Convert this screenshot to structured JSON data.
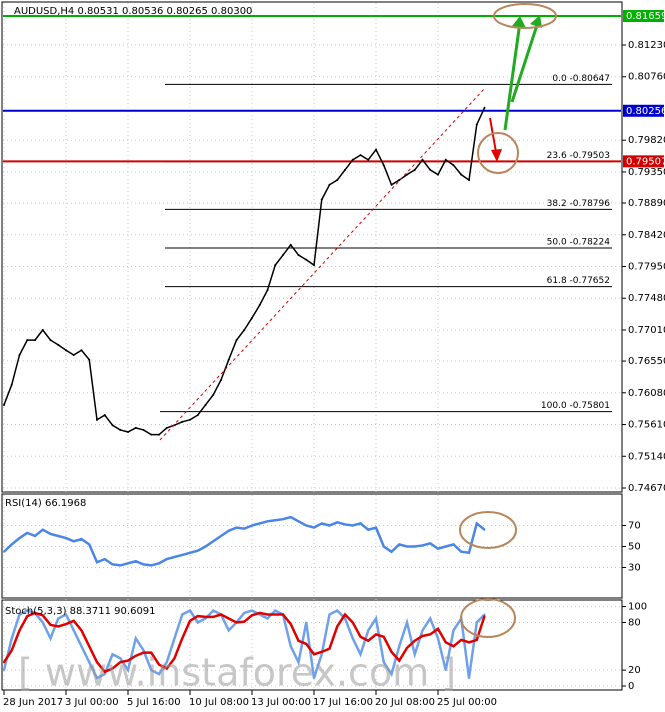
{
  "chart_data": [
    {
      "type": "line",
      "title": "AUDUSD,H4  0.80531 0.80536 0.80265 0.80300",
      "watermark": "[   www.instaforex.com   ]",
      "categories": [
        "28 Jun 2017",
        null,
        null,
        null,
        null,
        null,
        null,
        null,
        "3 Jul 00:00",
        null,
        null,
        null,
        null,
        null,
        null,
        null,
        "5 Jul 16:00",
        null,
        null,
        null,
        null,
        null,
        null,
        null,
        "10 Jul 08:00",
        null,
        null,
        null,
        null,
        null,
        null,
        null,
        "13 Jul 00:00",
        null,
        null,
        null,
        null,
        null,
        null,
        null,
        "17 Jul 16:00",
        null,
        null,
        null,
        null,
        null,
        null,
        null,
        "20 Jul 08:00",
        null,
        null,
        null,
        null,
        null,
        null,
        null,
        "25 Jul 00:00",
        null,
        null,
        null,
        null,
        null,
        null
      ],
      "series": [
        {
          "name": "AUDUSD",
          "color": "#000000",
          "values": [
            0.759,
            0.762,
            0.7664,
            0.7686,
            0.7686,
            0.7701,
            0.7686,
            0.7679,
            0.7671,
            0.7664,
            0.7671,
            0.7657,
            0.7568,
            0.7575,
            0.756,
            0.7553,
            0.755,
            0.7556,
            0.7553,
            0.7546,
            0.7546,
            0.7556,
            0.756,
            0.7565,
            0.7568,
            0.7575,
            0.759,
            0.7605,
            0.7627,
            0.7657,
            0.7686,
            0.7701,
            0.7719,
            0.7738,
            0.776,
            0.7797,
            0.7812,
            0.7827,
            0.7812,
            0.7805,
            0.7797,
            0.7894,
            0.7916,
            0.7923,
            0.7938,
            0.7953,
            0.796,
            0.7953,
            0.7968,
            0.7945,
            0.7916,
            0.7923,
            0.7931,
            0.7938,
            0.7953,
            0.7938,
            0.7931,
            0.7953,
            0.7945,
            0.7931,
            0.7923,
            0.8005,
            0.803
          ]
        }
      ],
      "ylim": [
        0.74611,
        0.81837
      ],
      "yticks": [
        {
          "value": 0.8123,
          "label": "0.81230"
        },
        {
          "value": 0.8076,
          "label": "0.80760"
        },
        {
          "value": 0.7982,
          "label": "0.79820"
        },
        {
          "value": 0.7935,
          "label": "0.79350"
        },
        {
          "value": 0.7889,
          "label": "0.78890"
        },
        {
          "value": 0.7842,
          "label": "0.78420"
        },
        {
          "value": 0.7795,
          "label": "0.77950"
        },
        {
          "value": 0.7748,
          "label": "0.77480"
        },
        {
          "value": 0.7701,
          "label": "0.77010"
        },
        {
          "value": 0.7655,
          "label": "0.76550"
        },
        {
          "value": 0.7608,
          "label": "0.76080"
        },
        {
          "value": 0.7561,
          "label": "0.75610"
        },
        {
          "value": 0.7514,
          "label": "0.75140"
        },
        {
          "value": 0.7467,
          "label": "0.74670"
        }
      ],
      "levels": [
        {
          "value": 0.81659,
          "color": "#00b000"
        },
        {
          "value": 0.80256,
          "color": "#0000cc"
        },
        {
          "value": 0.79507,
          "color": "#d00000"
        }
      ],
      "fibonacci": [
        {
          "value": 0.80647,
          "label": "0.0 -0.80647"
        },
        {
          "value": 0.79503,
          "label": "23.6 -0.79503"
        },
        {
          "value": 0.78796,
          "label": "38.2 -0.78796"
        },
        {
          "value": 0.78224,
          "label": "50.0 -0.78224"
        },
        {
          "value": 0.77652,
          "label": "61.8 -0.77652"
        },
        {
          "value": 0.75801,
          "label": "100.0 -0.75801"
        }
      ],
      "grid": true
    },
    {
      "type": "line",
      "title": "RSI(14) 66.1968",
      "series": [
        {
          "name": "RSI",
          "color": "#4a86e8",
          "values": [
            45,
            52,
            58,
            63,
            60,
            66,
            62,
            60,
            58,
            55,
            57,
            52,
            35,
            38,
            33,
            32,
            34,
            36,
            33,
            32,
            34,
            38,
            40,
            42,
            44,
            46,
            50,
            55,
            60,
            65,
            68,
            67,
            70,
            72,
            74,
            75,
            76,
            78,
            74,
            70,
            68,
            72,
            70,
            73,
            71,
            70,
            72,
            66,
            68,
            50,
            45,
            52,
            50,
            50,
            51,
            53,
            48,
            50,
            52,
            45,
            44,
            72,
            66
          ]
        }
      ],
      "ylim": [
        0,
        100
      ],
      "yticks": [
        70,
        50,
        30
      ],
      "grid": true
    },
    {
      "type": "line",
      "title": "Stoch(5,3,3) 88.3711 90.6091",
      "series": [
        {
          "name": "Main",
          "color": "#6fa0ea",
          "values": [
            20,
            60,
            90,
            95,
            92,
            80,
            60,
            85,
            90,
            70,
            50,
            30,
            10,
            15,
            40,
            35,
            20,
            60,
            45,
            20,
            15,
            30,
            60,
            90,
            95,
            80,
            85,
            95,
            90,
            70,
            80,
            92,
            95,
            90,
            85,
            95,
            90,
            50,
            30,
            80,
            10,
            40,
            90,
            95,
            85,
            60,
            40,
            70,
            85,
            30,
            15,
            50,
            80,
            40,
            70,
            85,
            60,
            20,
            70,
            85,
            10,
            80,
            90
          ]
        },
        {
          "name": "Signal",
          "color": "#e00000",
          "values": [
            30,
            45,
            70,
            88,
            92,
            89,
            77,
            75,
            78,
            82,
            70,
            50,
            30,
            18,
            22,
            30,
            32,
            38,
            42,
            42,
            27,
            22,
            35,
            60,
            82,
            88,
            87,
            87,
            90,
            85,
            80,
            81,
            89,
            92,
            90,
            90,
            90,
            78,
            57,
            53,
            40,
            43,
            47,
            75,
            90,
            80,
            62,
            57,
            65,
            62,
            43,
            32,
            48,
            57,
            63,
            65,
            72,
            55,
            50,
            58,
            55,
            58,
            88
          ]
        }
      ],
      "ylim": [
        -5,
        107
      ],
      "yticks": [
        100,
        80,
        20,
        0
      ],
      "grid": true
    }
  ]
}
